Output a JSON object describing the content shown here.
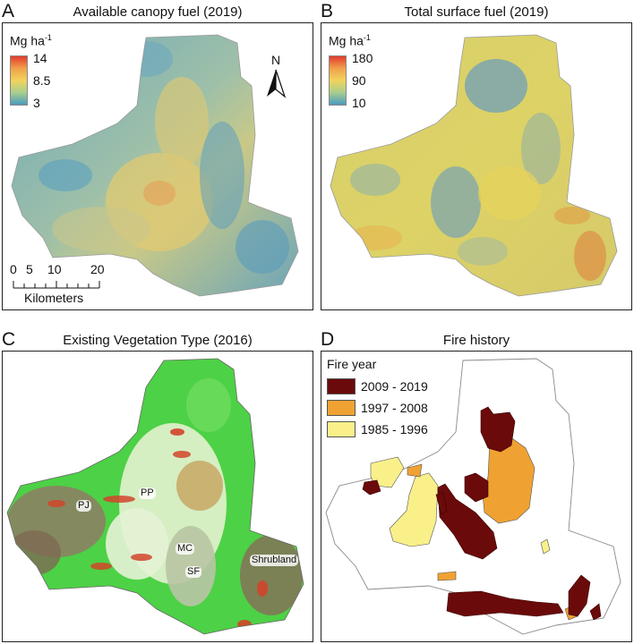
{
  "panels": {
    "a": {
      "letter": "A",
      "title": "Available canopy fuel (2019)",
      "unit": "Mg ha",
      "unit_sup": "-1",
      "ticks": [
        "14",
        "8.5",
        "3"
      ],
      "scale_ticks": [
        "0",
        "5",
        "10",
        "20"
      ],
      "scale_unit": "Kilometers",
      "north": "N",
      "colors": {
        "high": "#e23b2e",
        "mid": "#f1d35c",
        "low": "#4a9ac0",
        "base": "#8fb6ad"
      }
    },
    "b": {
      "letter": "B",
      "title": "Total surface fuel (2019)",
      "unit": "Mg ha",
      "unit_sup": "-1",
      "ticks": [
        "180",
        "90",
        "10"
      ],
      "colors": {
        "high": "#e23b2e",
        "mid": "#f1d35c",
        "low": "#4a9ac0",
        "base": "#d9d166"
      }
    },
    "c": {
      "letter": "C",
      "title": "Existing Vegetation Type (2016)",
      "labels": {
        "pj": "PJ",
        "pp": "PP",
        "mc": "MC",
        "sf": "SF",
        "shrub": "Shrubland"
      },
      "colors": {
        "green": "#4dd146",
        "pale": "#dcefc9",
        "brown": "#7d6a52",
        "red": "#d2452a"
      }
    },
    "d": {
      "letter": "D",
      "title": "Fire history",
      "legend_title": "Fire year",
      "legend": [
        {
          "label": "2009 - 2019",
          "color": "#6b0a0a"
        },
        {
          "label": "1997 - 2008",
          "color": "#efa232"
        },
        {
          "label": "1985 - 1996",
          "color": "#faf08a"
        }
      ]
    }
  }
}
